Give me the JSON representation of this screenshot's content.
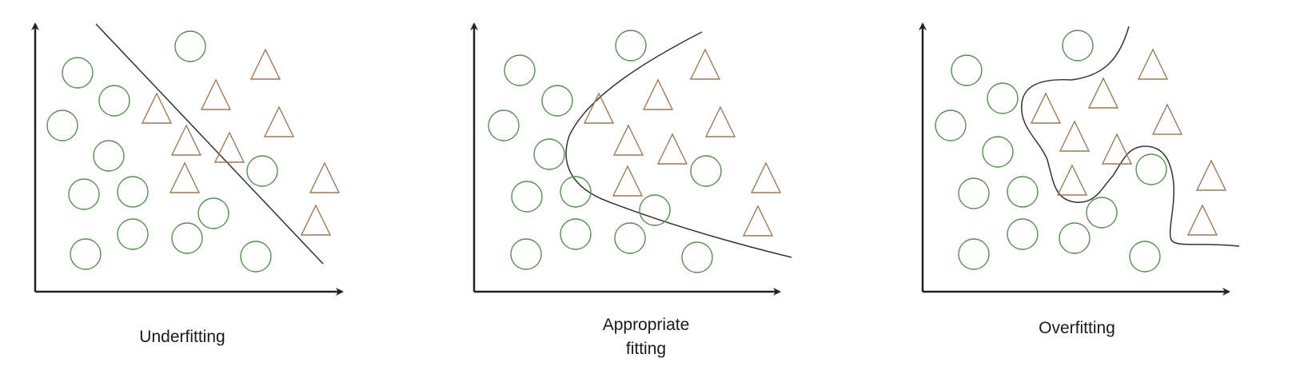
{
  "panels": [
    {
      "id": "underfitting",
      "caption_lines": [
        "Underfitting"
      ],
      "circles": [
        [
          2,
          9
        ],
        [
          3.5,
          7.5
        ],
        [
          1,
          6.5
        ],
        [
          3,
          5
        ],
        [
          2,
          3
        ],
        [
          4,
          3
        ],
        [
          4,
          1
        ],
        [
          6,
          1
        ],
        [
          2,
          0.5
        ],
        [
          7,
          2.5
        ],
        [
          8.5,
          4.5
        ],
        [
          9,
          0.8
        ]
      ],
      "triangles": [
        [
          4.5,
          7
        ],
        [
          7.5,
          8
        ],
        [
          9,
          6.5
        ],
        [
          5.5,
          5.5
        ],
        [
          7,
          5
        ],
        [
          5.5,
          3.5
        ],
        [
          11,
          4
        ],
        [
          10.5,
          1.5
        ]
      ]
    },
    {
      "id": "appropriate-fitting",
      "caption_lines": [
        "Appropriate",
        "fitting"
      ],
      "circles": [
        [
          1.5,
          8.5
        ],
        [
          3,
          7
        ],
        [
          1,
          6
        ],
        [
          2.5,
          4.5
        ],
        [
          1.5,
          3
        ],
        [
          3.5,
          3
        ],
        [
          3.5,
          1.5
        ],
        [
          5.5,
          1.5
        ],
        [
          1.5,
          0.5
        ],
        [
          6,
          2.2
        ],
        [
          8,
          4.2
        ],
        [
          7.5,
          0.5
        ]
      ],
      "triangles": [
        [
          4.5,
          7
        ],
        [
          6,
          7.5
        ],
        [
          8,
          8.5
        ],
        [
          8.5,
          6
        ],
        [
          5,
          5
        ],
        [
          6.5,
          5
        ],
        [
          5,
          3.5
        ],
        [
          10,
          3.5
        ],
        [
          10,
          1.5
        ]
      ]
    },
    {
      "id": "overfitting",
      "caption_lines": [
        "Overfitting"
      ],
      "circles": [
        [
          1.5,
          8.5
        ],
        [
          3,
          7
        ],
        [
          1,
          6
        ],
        [
          2.5,
          4.5
        ],
        [
          1.5,
          3
        ],
        [
          3,
          3
        ],
        [
          3,
          1.5
        ],
        [
          5,
          1.5
        ],
        [
          1.5,
          0.5
        ],
        [
          6,
          2.2
        ],
        [
          7.5,
          4.5
        ],
        [
          7.5,
          0.5
        ]
      ],
      "triangles": [
        [
          4,
          7
        ],
        [
          5.5,
          7.5
        ],
        [
          8,
          8.5
        ],
        [
          8.5,
          6
        ],
        [
          5,
          5
        ],
        [
          6.5,
          5
        ],
        [
          5,
          3.5
        ],
        [
          10,
          3.5
        ],
        [
          10,
          1.5
        ]
      ]
    }
  ],
  "colors": {
    "circle_stroke": "#5a8a55",
    "triangle_stroke": "#9c7a55",
    "axis": "#222222",
    "boundary": "#333333"
  }
}
